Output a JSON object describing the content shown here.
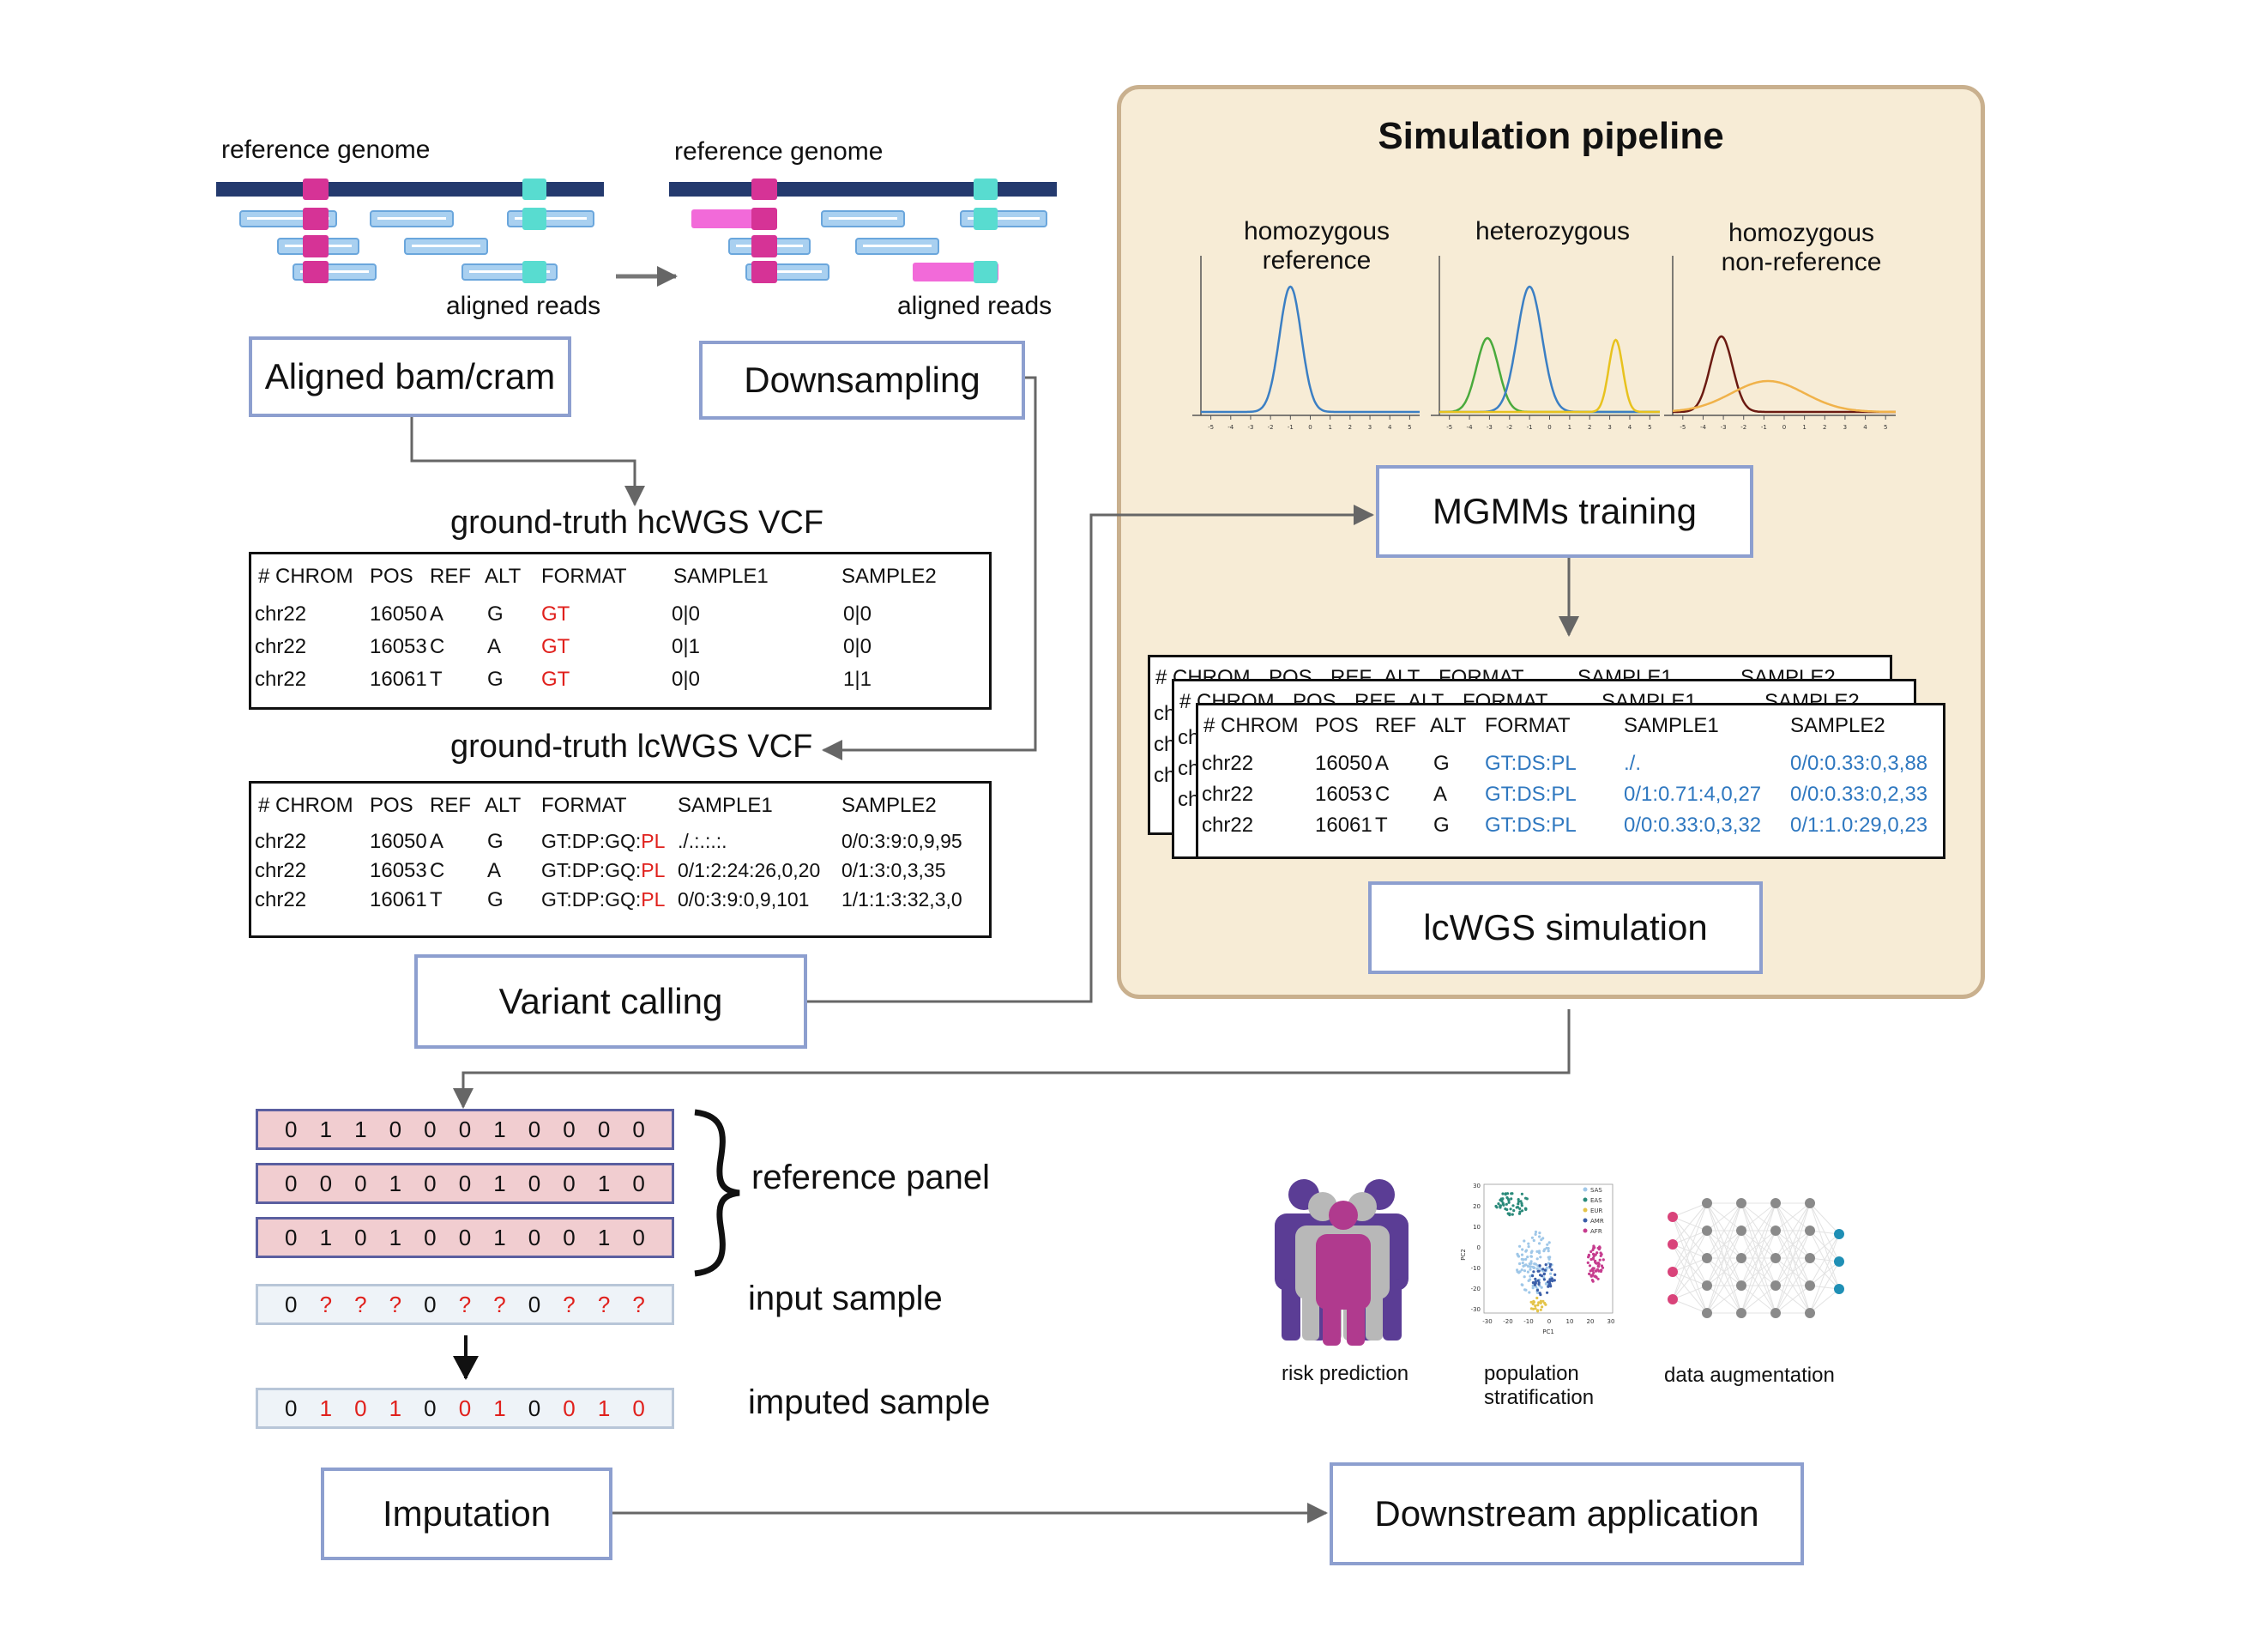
{
  "genome_panels": [
    {
      "reference_label": "reference genome",
      "reads_label": "aligned reads"
    },
    {
      "reference_label": "reference genome",
      "reads_label": "aligned reads"
    }
  ],
  "steps": {
    "aligned_bam": "Aligned bam/cram",
    "downsampling": "Downsampling",
    "mgmms_training": "MGMMs training",
    "lcwgs_simulation": "lcWGS simulation",
    "variant_calling": "Variant calling",
    "imputation": "Imputation",
    "downstream": "Downstream application"
  },
  "simulation_panel": {
    "title": "Simulation pipeline",
    "distributions": [
      {
        "label_line1": "homozygous",
        "label_line2": "reference"
      },
      {
        "label_line1": "heterozygous",
        "label_line2": ""
      },
      {
        "label_line1": "homozygous",
        "label_line2": "non-reference"
      }
    ],
    "axis_ticks": [
      "-5",
      "-4",
      "-3",
      "-2",
      "-1",
      "0",
      "1",
      "2",
      "3",
      "4",
      "5"
    ],
    "colors": {
      "blue": "#3b7fc4",
      "green": "#4aaa3c",
      "yellow": "#e8c21e",
      "darkred": "#6b1a12",
      "orange": "#f0b24a"
    }
  },
  "hc_vcf": {
    "title": "ground-truth hcWGS VCF",
    "headers": [
      "# CHROM",
      "POS",
      "REF",
      "ALT",
      "FORMAT",
      "SAMPLE1",
      "SAMPLE2"
    ],
    "rows": [
      {
        "chrom": "chr22",
        "pos": "16050",
        "ref": "A",
        "alt": "G",
        "format": "GT",
        "s1": "0|0",
        "s2": "0|0"
      },
      {
        "chrom": "chr22",
        "pos": "16053",
        "ref": "C",
        "alt": "A",
        "format": "GT",
        "s1": "0|1",
        "s2": "0|0"
      },
      {
        "chrom": "chr22",
        "pos": "16061",
        "ref": "T",
        "alt": "G",
        "format": "GT",
        "s1": "0|0",
        "s2": "1|1"
      }
    ]
  },
  "lc_vcf": {
    "title": "ground-truth lcWGS VCF",
    "headers": [
      "# CHROM",
      "POS",
      "REF",
      "ALT",
      "FORMAT",
      "SAMPLE1",
      "SAMPLE2"
    ],
    "format_prefix": "GT:DP:GQ:",
    "format_suffix": "PL",
    "rows": [
      {
        "chrom": "chr22",
        "pos": "16050",
        "ref": "A",
        "alt": "G",
        "s1": "./.:.:.:.",
        "s2": "0/0:3:9:0,9,95"
      },
      {
        "chrom": "chr22",
        "pos": "16053",
        "ref": "C",
        "alt": "A",
        "s1": "0/1:2:24:26,0,20",
        "s2": "0/1:3:0,3,35"
      },
      {
        "chrom": "chr22",
        "pos": "16061",
        "ref": "T",
        "alt": "G",
        "s1": "0/0:3:9:0,9,101",
        "s2": "1/1:1:3:32,3,0"
      }
    ]
  },
  "sim_vcf": {
    "back_headers": [
      "# CHROM",
      "POS",
      "REF",
      "ALT",
      "FORMAT",
      "SAMPLE1",
      "SAMPLE2"
    ],
    "back_fragment": "ch",
    "headers": [
      "# CHROM",
      "POS",
      "REF",
      "ALT",
      "FORMAT",
      "SAMPLE1",
      "SAMPLE2"
    ],
    "rows": [
      {
        "chrom": "chr22",
        "pos": "16050",
        "ref": "A",
        "alt": "G",
        "format": "GT:DS:PL",
        "s1": "./.",
        "s2": "0/0:0.33:0,3,88"
      },
      {
        "chrom": "chr22",
        "pos": "16053",
        "ref": "C",
        "alt": "A",
        "format": "GT:DS:PL",
        "s1": "0/1:0.71:4,0,27",
        "s2": "0/0:0.33:0,2,33"
      },
      {
        "chrom": "chr22",
        "pos": "16061",
        "ref": "T",
        "alt": "G",
        "format": "GT:DS:PL",
        "s1": "0/0:0.33:0,3,32",
        "s2": "0/1:1.0:29,0,23"
      }
    ]
  },
  "imputation": {
    "reference_panel_label": "reference panel",
    "input_sample_label": "input sample",
    "imputed_sample_label": "imputed sample",
    "reference_panel": [
      [
        "0",
        "1",
        "1",
        "0",
        "0",
        "0",
        "1",
        "0",
        "0",
        "0",
        "0"
      ],
      [
        "0",
        "0",
        "0",
        "1",
        "0",
        "0",
        "1",
        "0",
        "0",
        "1",
        "0"
      ],
      [
        "0",
        "1",
        "0",
        "1",
        "0",
        "0",
        "1",
        "0",
        "0",
        "1",
        "0"
      ]
    ],
    "input_sample": [
      "0",
      "?",
      "?",
      "?",
      "0",
      "?",
      "?",
      "0",
      "?",
      "?",
      "?"
    ],
    "imputed_sample": [
      "0",
      "1",
      "0",
      "1",
      "0",
      "0",
      "1",
      "0",
      "0",
      "1",
      "0"
    ],
    "imputed_highlight": [
      false,
      true,
      true,
      true,
      false,
      true,
      true,
      false,
      true,
      true,
      true
    ]
  },
  "applications": [
    {
      "label_line1": "risk prediction",
      "label_line2": ""
    },
    {
      "label_line1": "population",
      "label_line2": "stratification"
    },
    {
      "label_line1": "data augmentation",
      "label_line2": ""
    }
  ],
  "pca": {
    "legend": [
      "SAS",
      "EAS",
      "EUR",
      "AMR",
      "AFR"
    ],
    "xlabel": "PC1",
    "ylabel": "PC2",
    "xticks": [
      "-30",
      "-20",
      "-10",
      "0",
      "10",
      "20",
      "30"
    ],
    "yticks": [
      "30",
      "20",
      "10",
      "0",
      "-10",
      "-20",
      "-30"
    ]
  }
}
